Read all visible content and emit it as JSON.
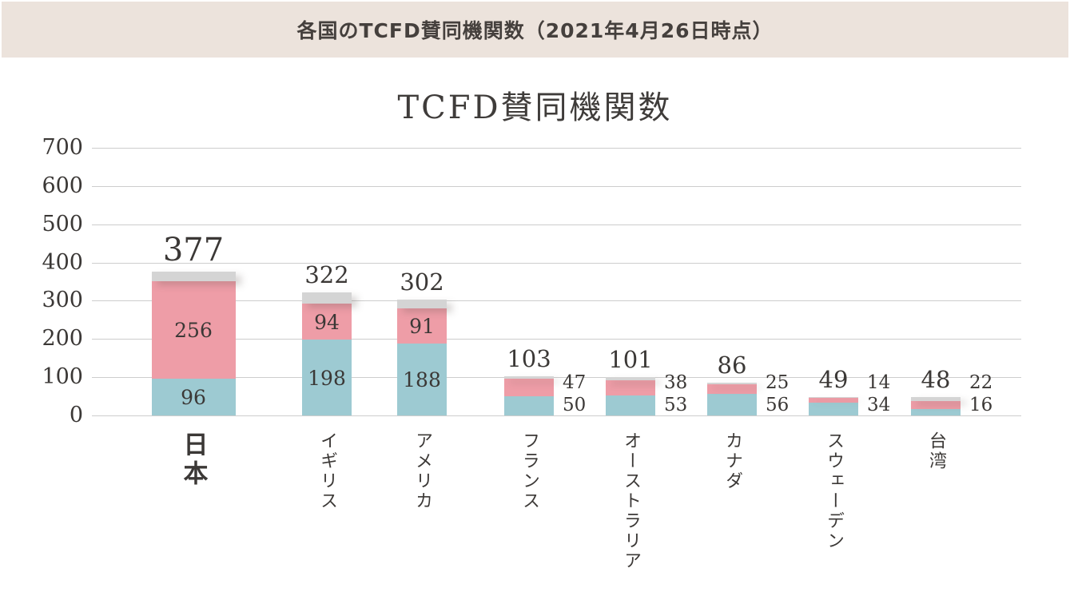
{
  "banner": {
    "title": "各国のTCFD賛同機関数（2021年4月26日時点）",
    "background": "#ece3dc"
  },
  "chart_data": {
    "type": "bar",
    "stacked": true,
    "title": "TCFD賛同機関数",
    "categories": [
      "日本",
      "イギリス",
      "アメリカ",
      "フランス",
      "オーストラリア",
      "カナダ",
      "スウェーデン",
      "台湾"
    ],
    "series": [
      {
        "name": "bottom-segment",
        "color": "#9dcad2",
        "values": [
          96,
          198,
          188,
          50,
          53,
          56,
          34,
          16
        ]
      },
      {
        "name": "middle-segment",
        "color": "#ee9da7",
        "values": [
          256,
          94,
          91,
          47,
          38,
          25,
          14,
          22
        ]
      },
      {
        "name": "top-segment",
        "color": "#d4d4d4",
        "values": [
          25,
          30,
          23,
          6,
          10,
          5,
          1,
          10
        ]
      }
    ],
    "totals": [
      377,
      322,
      302,
      103,
      101,
      86,
      49,
      48
    ],
    "labeled_series": [
      "bottom-segment",
      "middle-segment"
    ],
    "xlabel": "",
    "ylabel": "",
    "ylim": [
      0,
      700
    ],
    "yticks": [
      0,
      100,
      200,
      300,
      400,
      500,
      600,
      700
    ],
    "grid": true,
    "legend": "none",
    "colors": {
      "text": "#3b3836",
      "gridline": "#cdcdcd"
    }
  }
}
